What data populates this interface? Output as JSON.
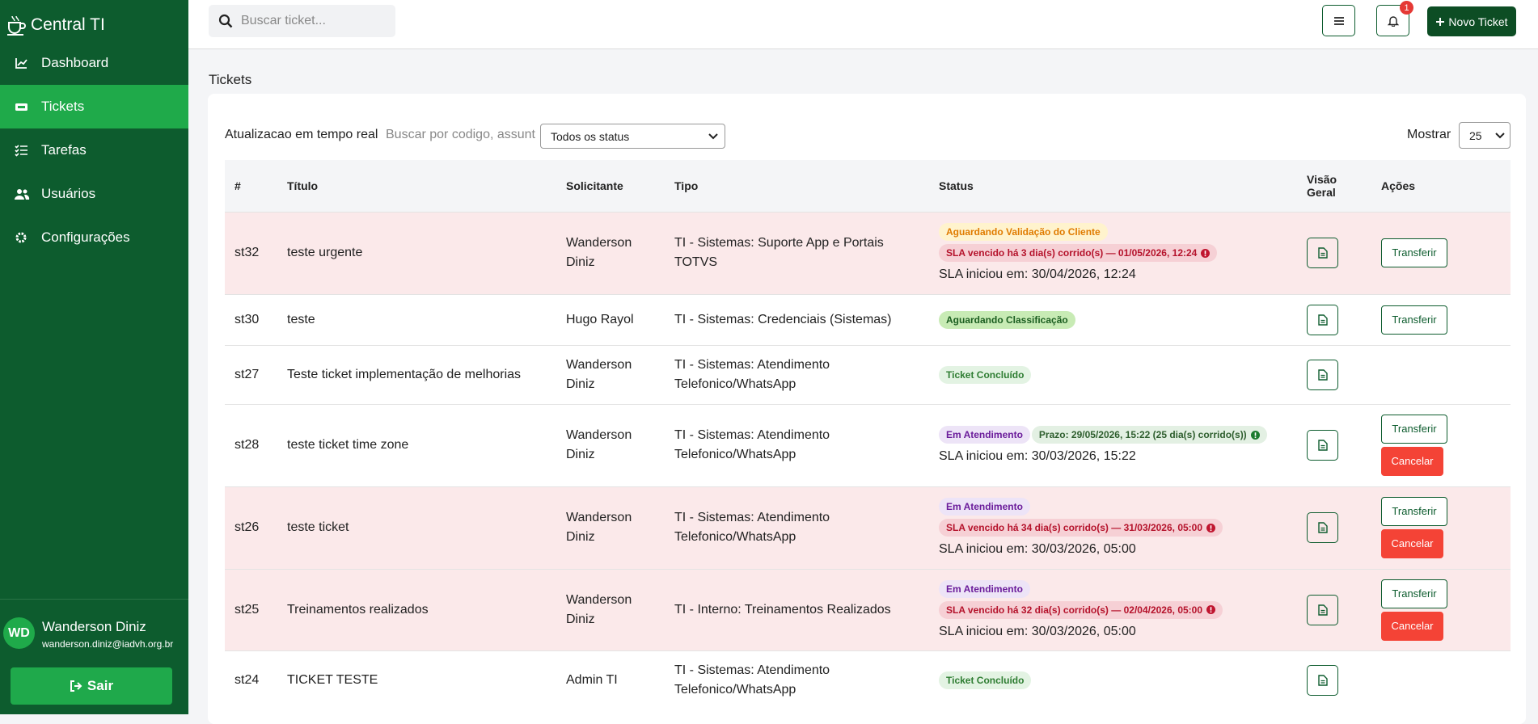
{
  "sidebar": {
    "brand": "Central TI",
    "nav": [
      "Dashboard",
      "Tickets",
      "Tarefas",
      "Usuários",
      "Configurações"
    ],
    "active": 1
  },
  "user": {
    "initials": "WD",
    "name": "Wanderson Diniz",
    "email": "wanderson.diniz@iadvh.org.br",
    "logout": "Sair"
  },
  "topbar": {
    "search_placeholder": "Buscar ticket...",
    "notif_count": "1",
    "new_ticket": "Novo Ticket"
  },
  "page": {
    "title": "Tickets"
  },
  "toolbar": {
    "realtime": "Atualizacao em tempo real",
    "search_placeholder": "Buscar por codigo, assunt",
    "status_select": "Todos os status",
    "show_label": "Mostrar",
    "show_value": "25"
  },
  "table": {
    "headers": [
      "#",
      "Título",
      "Solicitante",
      "Tipo",
      "Status",
      "Visão Geral",
      "Ações"
    ],
    "rows": [
      {
        "id": "st32",
        "title": "teste urgente",
        "requester": "Wanderson Diniz",
        "type": "TI - Sistemas: Suporte App e Portais TOTVS",
        "overdue": true,
        "badges": [
          {
            "text": "Aguardando Validação do Cliente",
            "style": "warning"
          },
          {
            "text": "SLA vencido há 3 dia(s) corrido(s) — 01/05/2026, 12:24",
            "style": "danger"
          }
        ],
        "sla_start": "SLA iniciou em: 30/04/2026, 12:24",
        "actions": [
          "Transferir"
        ]
      },
      {
        "id": "st30",
        "title": "teste",
        "requester": "Hugo Rayol",
        "type": "TI - Sistemas: Credenciais (Sistemas)",
        "overdue": false,
        "badges": [
          {
            "text": "Aguardando Classificação",
            "style": "green"
          }
        ],
        "actions": [
          "Transferir"
        ]
      },
      {
        "id": "st27",
        "title": "Teste ticket implementação de melhorias",
        "requester": "Wanderson Diniz",
        "type": "TI - Sistemas: Atendimento Telefonico/WhatsApp",
        "overdue": false,
        "badges": [
          {
            "text": "Ticket Concluído",
            "style": "success"
          }
        ],
        "actions": []
      },
      {
        "id": "st28",
        "title": "teste ticket time zone",
        "requester": "Wanderson Diniz",
        "type": "TI - Sistemas: Atendimento Telefonico/WhatsApp",
        "overdue": false,
        "badges": [
          {
            "text": "Em Atendimento",
            "style": "purple"
          },
          {
            "text": "Prazo: 29/05/2026, 15:22 (25 dia(s) corrido(s))",
            "style": "deadline"
          }
        ],
        "sla_start": "SLA iniciou em: 30/03/2026, 15:22",
        "actions": [
          "Transferir",
          "Cancelar"
        ]
      },
      {
        "id": "st26",
        "title": "teste ticket",
        "requester": "Wanderson Diniz",
        "type": "TI - Sistemas: Atendimento Telefonico/WhatsApp",
        "overdue": true,
        "badges": [
          {
            "text": "Em Atendimento",
            "style": "purple"
          },
          {
            "text": "SLA vencido há 34 dia(s) corrido(s) — 31/03/2026, 05:00",
            "style": "danger"
          }
        ],
        "sla_start": "SLA iniciou em: 30/03/2026, 05:00",
        "actions": [
          "Transferir",
          "Cancelar"
        ]
      },
      {
        "id": "st25",
        "title": "Treinamentos realizados",
        "requester": "Wanderson Diniz",
        "type": "TI - Interno: Treinamentos Realizados",
        "overdue": true,
        "badges": [
          {
            "text": "Em Atendimento",
            "style": "purple"
          },
          {
            "text": "SLA vencido há 32 dia(s) corrido(s) — 02/04/2026, 05:00",
            "style": "danger"
          }
        ],
        "sla_start": "SLA iniciou em: 30/03/2026, 05:00",
        "actions": [
          "Transferir",
          "Cancelar"
        ]
      },
      {
        "id": "st24",
        "title": "TICKET TESTE",
        "requester": "Admin TI",
        "type": "TI - Sistemas: Atendimento Telefonico/WhatsApp",
        "overdue": false,
        "badges": [
          {
            "text": "Ticket Concluído",
            "style": "success"
          }
        ],
        "actions": []
      }
    ]
  }
}
